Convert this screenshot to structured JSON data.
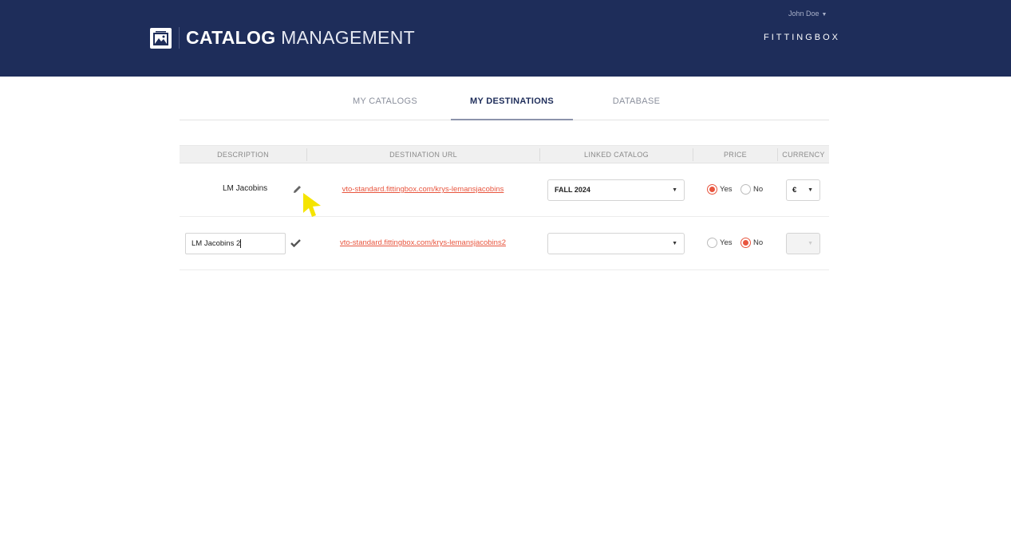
{
  "header": {
    "title_bold": "CATALOG",
    "title_light": "MANAGEMENT",
    "user_name": "John Doe",
    "brand": "FITTINGBOX"
  },
  "tabs": [
    {
      "label": "MY CATALOGS",
      "active": false
    },
    {
      "label": "MY DESTINATIONS",
      "active": true
    },
    {
      "label": "DATABASE",
      "active": false
    }
  ],
  "table": {
    "columns": [
      "DESCRIPTION",
      "DESTINATION URL",
      "LINKED CATALOG",
      "PRICE",
      "CURRENCY"
    ],
    "rows": [
      {
        "description": "LM Jacobins",
        "editing": false,
        "url": "vto-standard.fittingbox.com/krys-lemansjacobins",
        "linked_catalog": "FALL 2024",
        "price_yes": "Yes",
        "price_no": "No",
        "price": "Yes",
        "currency": "€"
      },
      {
        "description": "LM Jacobins 2",
        "editing": true,
        "url": "vto-standard.fittingbox.com/krys-lemansjacobins2",
        "linked_catalog": "",
        "price_yes": "Yes",
        "price_no": "No",
        "price": "No",
        "currency": ""
      }
    ]
  },
  "colors": {
    "header_bg": "#1e2d5a",
    "accent": "#e8553e",
    "cursor": "#f5e400"
  }
}
